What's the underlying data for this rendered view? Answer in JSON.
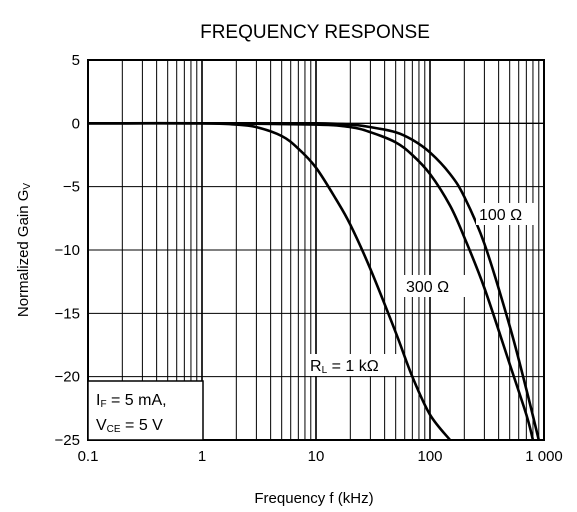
{
  "chart_data": {
    "type": "line",
    "title": "FREQUENCY RESPONSE",
    "xlabel": "Frequency  f (kHz)",
    "ylabel": {
      "main": "Normalized Gain  G",
      "sub": "V"
    },
    "x_scale": "log",
    "xlim": [
      0.1,
      1000
    ],
    "ylim": [
      -25,
      5
    ],
    "x_ticks": [
      {
        "value": 0.1,
        "label": "0.1"
      },
      {
        "value": 1,
        "label": "1"
      },
      {
        "value": 10,
        "label": "10"
      },
      {
        "value": 100,
        "label": "100"
      },
      {
        "value": 1000,
        "label": "1 000"
      }
    ],
    "y_ticks": [
      {
        "value": 5,
        "label": "5"
      },
      {
        "value": 0,
        "label": "0"
      },
      {
        "value": -5,
        "label": "−5"
      },
      {
        "value": -10,
        "label": "−10"
      },
      {
        "value": -15,
        "label": "−15"
      },
      {
        "value": -20,
        "label": "−20"
      },
      {
        "value": -25,
        "label": "−25"
      }
    ],
    "grid": true,
    "series": [
      {
        "name": "R_L = 1 kΩ",
        "x": [
          0.1,
          1,
          2,
          3,
          5,
          7,
          10,
          15,
          20,
          30,
          50,
          70,
          100,
          150
        ],
        "y": [
          0,
          0,
          -0.1,
          -0.3,
          -1.0,
          -2.0,
          -3.5,
          -6.0,
          -8.0,
          -11.5,
          -16.5,
          -20.0,
          -23.0,
          -25.0
        ]
      },
      {
        "name": "300 Ω",
        "x": [
          0.1,
          1,
          10,
          20,
          30,
          50,
          70,
          100,
          150,
          200,
          300,
          500,
          700,
          800
        ],
        "y": [
          0,
          0,
          -0.1,
          -0.3,
          -0.7,
          -1.5,
          -2.5,
          -4.0,
          -6.5,
          -9.0,
          -13.0,
          -19.0,
          -23.0,
          -25.0
        ]
      },
      {
        "name": "100 Ω",
        "x": [
          0.1,
          1,
          10,
          20,
          30,
          50,
          70,
          100,
          150,
          200,
          300,
          500,
          700,
          900
        ],
        "y": [
          0,
          0,
          0,
          -0.1,
          -0.3,
          -0.7,
          -1.3,
          -2.3,
          -4.0,
          -5.8,
          -9.5,
          -16.0,
          -21.0,
          -25.0
        ]
      }
    ],
    "annotations": {
      "curve_1k": {
        "main": "R",
        "sub": "L",
        "rest": " = 1 kΩ"
      },
      "curve_300": "300 Ω",
      "curve_100": "100 Ω",
      "conditions": [
        {
          "main": "I",
          "sub": "F",
          "rest": " = 5 mA,"
        },
        {
          "main": "V",
          "sub": "CE",
          "rest": " = 5 V"
        }
      ]
    }
  }
}
